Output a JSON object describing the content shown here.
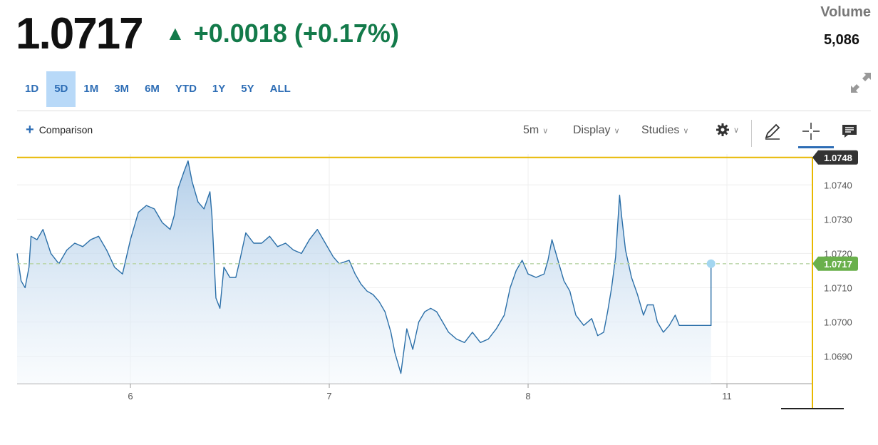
{
  "quote": {
    "price": "1.0717",
    "change": "+0.0018 (+0.17%)",
    "change_color": "#137a4a"
  },
  "volume": {
    "label": "Volume",
    "value": "5,086"
  },
  "ranges": [
    "1D",
    "5D",
    "1M",
    "3M",
    "6M",
    "YTD",
    "1Y",
    "5Y",
    "ALL"
  ],
  "active_range": "5D",
  "toolbar": {
    "comparison_label": "Comparison",
    "interval_label": "5m",
    "display_label": "Display",
    "studies_label": "Studies",
    "icons": [
      "gear-icon",
      "pencil-icon",
      "crosshair-icon",
      "comment-icon",
      "expand-icon"
    ]
  },
  "colors": {
    "line": "#2b6fa8",
    "fill_top": "#a9c8e6",
    "fill_bottom": "#f3f8fc",
    "crosshair": "#e8b800",
    "current_price_tag": "#6ab04c",
    "high_tag": "#333333",
    "accent": "#2d6db5"
  },
  "chart_data": {
    "type": "area",
    "ylim": [
      1.0682,
      1.0749
    ],
    "y_ticks": [
      "1.0740",
      "1.0730",
      "1.0720",
      "1.0710",
      "1.0700",
      "1.0690"
    ],
    "x_ticks": [
      "6",
      "7",
      "8",
      "11"
    ],
    "x_tick_positions": [
      6,
      7,
      8,
      9
    ],
    "xlim": [
      5.43,
      9.43
    ],
    "grid": true,
    "last_price": 1.0717,
    "last_price_label": "1.0717",
    "crosshair_price": 1.0748,
    "crosshair_label": "1.0748",
    "series": [
      {
        "points": [
          [
            5.43,
            1.072
          ],
          [
            5.45,
            1.0712
          ],
          [
            5.47,
            1.071
          ],
          [
            5.49,
            1.0716
          ],
          [
            5.5,
            1.0725
          ],
          [
            5.53,
            1.0724
          ],
          [
            5.56,
            1.0727
          ],
          [
            5.6,
            1.072
          ],
          [
            5.64,
            1.0717
          ],
          [
            5.68,
            1.0721
          ],
          [
            5.72,
            1.0723
          ],
          [
            5.76,
            1.0722
          ],
          [
            5.8,
            1.0724
          ],
          [
            5.84,
            1.0725
          ],
          [
            5.88,
            1.0721
          ],
          [
            5.92,
            1.0716
          ],
          [
            5.96,
            1.0714
          ],
          [
            6.0,
            1.0724
          ],
          [
            6.04,
            1.0732
          ],
          [
            6.08,
            1.0734
          ],
          [
            6.12,
            1.0733
          ],
          [
            6.16,
            1.0729
          ],
          [
            6.2,
            1.0727
          ],
          [
            6.22,
            1.0731
          ],
          [
            6.24,
            1.0739
          ],
          [
            6.27,
            1.0744
          ],
          [
            6.29,
            1.0747
          ],
          [
            6.31,
            1.0741
          ],
          [
            6.34,
            1.0735
          ],
          [
            6.37,
            1.0733
          ],
          [
            6.4,
            1.0738
          ],
          [
            6.41,
            1.0731
          ],
          [
            6.43,
            1.0707
          ],
          [
            6.45,
            1.0704
          ],
          [
            6.47,
            1.0716
          ],
          [
            6.5,
            1.0713
          ],
          [
            6.53,
            1.0713
          ],
          [
            6.55,
            1.0718
          ],
          [
            6.58,
            1.0726
          ],
          [
            6.62,
            1.0723
          ],
          [
            6.66,
            1.0723
          ],
          [
            6.7,
            1.0725
          ],
          [
            6.74,
            1.0722
          ],
          [
            6.78,
            1.0723
          ],
          [
            6.82,
            1.0721
          ],
          [
            6.86,
            1.072
          ],
          [
            6.9,
            1.0724
          ],
          [
            6.94,
            1.0727
          ],
          [
            6.98,
            1.0723
          ],
          [
            7.02,
            1.0719
          ],
          [
            7.05,
            1.0717
          ],
          [
            7.1,
            1.0718
          ],
          [
            7.13,
            1.0714
          ],
          [
            7.16,
            1.0711
          ],
          [
            7.19,
            1.0709
          ],
          [
            7.22,
            1.0708
          ],
          [
            7.25,
            1.0706
          ],
          [
            7.28,
            1.0703
          ],
          [
            7.31,
            1.0697
          ],
          [
            7.33,
            1.0691
          ],
          [
            7.36,
            1.0685
          ],
          [
            7.39,
            1.0698
          ],
          [
            7.42,
            1.0692
          ],
          [
            7.45,
            1.07
          ],
          [
            7.48,
            1.0703
          ],
          [
            7.51,
            1.0704
          ],
          [
            7.54,
            1.0703
          ],
          [
            7.57,
            1.07
          ],
          [
            7.6,
            1.0697
          ],
          [
            7.64,
            1.0695
          ],
          [
            7.68,
            1.0694
          ],
          [
            7.72,
            1.0697
          ],
          [
            7.76,
            1.0694
          ],
          [
            7.8,
            1.0695
          ],
          [
            7.84,
            1.0698
          ],
          [
            7.88,
            1.0702
          ],
          [
            7.91,
            1.071
          ],
          [
            7.94,
            1.0715
          ],
          [
            7.97,
            1.0718
          ],
          [
            8.0,
            1.0714
          ],
          [
            8.04,
            1.0713
          ],
          [
            8.08,
            1.0714
          ],
          [
            8.1,
            1.0718
          ],
          [
            8.12,
            1.0724
          ],
          [
            8.15,
            1.0718
          ],
          [
            8.18,
            1.0712
          ],
          [
            8.21,
            1.0709
          ],
          [
            8.24,
            1.0702
          ],
          [
            8.28,
            1.0699
          ],
          [
            8.32,
            1.0701
          ],
          [
            8.35,
            1.0696
          ],
          [
            8.38,
            1.0697
          ],
          [
            8.4,
            1.0703
          ],
          [
            8.42,
            1.071
          ],
          [
            8.44,
            1.0719
          ],
          [
            8.45,
            1.0728
          ],
          [
            8.46,
            1.0737
          ],
          [
            8.47,
            1.0731
          ],
          [
            8.49,
            1.0721
          ],
          [
            8.52,
            1.0713
          ],
          [
            8.55,
            1.0708
          ],
          [
            8.58,
            1.0702
          ],
          [
            8.6,
            1.0705
          ],
          [
            8.63,
            1.0705
          ],
          [
            8.65,
            1.07
          ],
          [
            8.68,
            1.0697
          ],
          [
            8.71,
            1.0699
          ],
          [
            8.74,
            1.0702
          ],
          [
            8.76,
            1.0699
          ],
          [
            8.78,
            1.0699
          ],
          [
            8.8,
            1.0699
          ],
          [
            8.83,
            1.0699
          ],
          [
            8.86,
            1.0699
          ]
        ]
      }
    ],
    "flat_extension": [
      [
        8.86,
        1.0699
      ],
      [
        8.92,
        1.0699
      ],
      [
        8.92,
        1.0717
      ]
    ]
  }
}
